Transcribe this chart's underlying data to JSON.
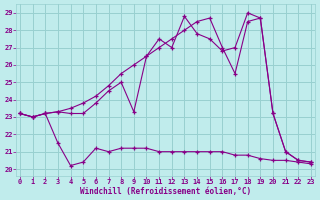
{
  "xlabel": "Windchill (Refroidissement éolien,°C)",
  "bg_color": "#c0ecec",
  "grid_color": "#98d0d0",
  "line_color": "#880088",
  "ylim": [
    19.6,
    29.5
  ],
  "xlim": [
    -0.3,
    23.3
  ],
  "yticks": [
    20,
    21,
    22,
    23,
    24,
    25,
    26,
    27,
    28,
    29
  ],
  "xticks": [
    0,
    1,
    2,
    3,
    4,
    5,
    6,
    7,
    8,
    9,
    10,
    11,
    12,
    13,
    14,
    15,
    16,
    17,
    18,
    19,
    20,
    21,
    22,
    23
  ],
  "line1_x": [
    0,
    1,
    2,
    3,
    4,
    5,
    6,
    7,
    8,
    9,
    10,
    11,
    12,
    13,
    14,
    15,
    16,
    17,
    18,
    19,
    20,
    21,
    22,
    23
  ],
  "line1_y": [
    23.2,
    23.0,
    23.2,
    23.3,
    23.5,
    23.8,
    24.2,
    24.8,
    25.5,
    26.0,
    26.5,
    27.0,
    27.5,
    28.0,
    28.5,
    28.7,
    27.0,
    25.5,
    28.5,
    28.7,
    23.2,
    21.0,
    20.5,
    20.4
  ],
  "line2_x": [
    0,
    1,
    2,
    3,
    4,
    5,
    6,
    7,
    8,
    9,
    10,
    11,
    12,
    13,
    14,
    15,
    16,
    17,
    18,
    19,
    20,
    21,
    22,
    23
  ],
  "line2_y": [
    23.2,
    23.0,
    23.2,
    23.3,
    23.2,
    23.2,
    23.8,
    24.5,
    25.0,
    23.3,
    26.5,
    27.5,
    27.0,
    28.8,
    27.8,
    27.5,
    26.8,
    27.0,
    29.0,
    28.7,
    23.2,
    21.0,
    20.5,
    20.4
  ],
  "line3_x": [
    0,
    1,
    2,
    3,
    4,
    5,
    6,
    7,
    8,
    9,
    10,
    11,
    12,
    13,
    14,
    15,
    16,
    17,
    18,
    19,
    20,
    21,
    22,
    23
  ],
  "line3_y": [
    23.2,
    23.0,
    23.2,
    21.5,
    20.2,
    20.4,
    21.2,
    21.0,
    21.2,
    21.2,
    21.2,
    21.0,
    21.0,
    21.0,
    21.0,
    21.0,
    21.0,
    20.8,
    20.8,
    20.6,
    20.5,
    20.5,
    20.4,
    20.3
  ]
}
